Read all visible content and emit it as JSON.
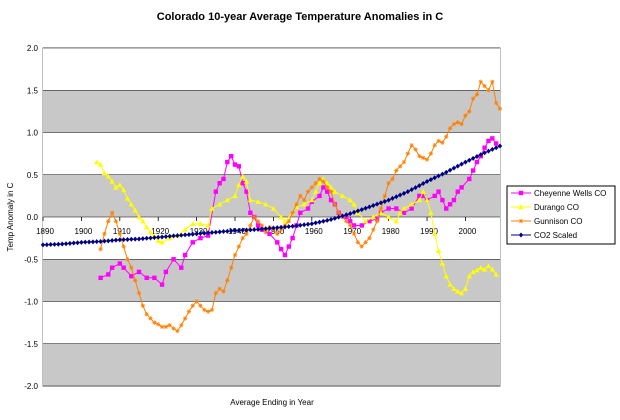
{
  "chart_data": {
    "type": "line",
    "title": "Colorado 10-year Average Temperature Anomalies in C",
    "xlabel": "Average Ending in Year",
    "ylabel": "Temp Anomaly in C",
    "xlim": [
      1890,
      2009
    ],
    "ylim": [
      -2.0,
      2.0
    ],
    "y_ticks": [
      "2.0",
      "1.5",
      "1.0",
      "0.5",
      "0.0",
      "-0.5",
      "-1.0",
      "-1.5",
      "-2.0"
    ],
    "x_ticks": [
      "1890",
      "1900",
      "1910",
      "1920",
      "1930",
      "1940",
      "1950",
      "1960",
      "1970",
      "1980",
      "1990",
      "2000"
    ],
    "grid": true,
    "legend_position": "right",
    "series": [
      {
        "name": "Cheyenne Wells CO",
        "color": "#ff00ff",
        "marker": "square",
        "points": [
          [
            1905,
            -0.72
          ],
          [
            1907,
            -0.68
          ],
          [
            1908,
            -0.6
          ],
          [
            1910,
            -0.55
          ],
          [
            1911,
            -0.6
          ],
          [
            1913,
            -0.7
          ],
          [
            1915,
            -0.65
          ],
          [
            1917,
            -0.72
          ],
          [
            1919,
            -0.72
          ],
          [
            1921,
            -0.8
          ],
          [
            1922,
            -0.65
          ],
          [
            1924,
            -0.5
          ],
          [
            1926,
            -0.6
          ],
          [
            1927,
            -0.45
          ],
          [
            1929,
            -0.3
          ],
          [
            1931,
            -0.25
          ],
          [
            1933,
            -0.22
          ],
          [
            1935,
            0.3
          ],
          [
            1936,
            0.4
          ],
          [
            1937,
            0.45
          ],
          [
            1938,
            0.65
          ],
          [
            1939,
            0.72
          ],
          [
            1940,
            0.62
          ],
          [
            1941,
            0.6
          ],
          [
            1942,
            0.4
          ],
          [
            1943,
            0.3
          ],
          [
            1944,
            0.05
          ],
          [
            1945,
            0.0
          ],
          [
            1946,
            -0.1
          ],
          [
            1947,
            -0.15
          ],
          [
            1949,
            -0.2
          ],
          [
            1951,
            -0.3
          ],
          [
            1952,
            -0.38
          ],
          [
            1953,
            -0.45
          ],
          [
            1954,
            -0.35
          ],
          [
            1955,
            -0.25
          ],
          [
            1956,
            -0.1
          ],
          [
            1957,
            0.05
          ],
          [
            1959,
            0.1
          ],
          [
            1960,
            0.18
          ],
          [
            1962,
            0.25
          ],
          [
            1963,
            0.35
          ],
          [
            1964,
            0.3
          ],
          [
            1965,
            0.2
          ],
          [
            1966,
            0.15
          ],
          [
            1967,
            0.05
          ],
          [
            1969,
            0.0
          ],
          [
            1970,
            -0.05
          ],
          [
            1971,
            -0.1
          ],
          [
            1973,
            -0.1
          ],
          [
            1975,
            -0.05
          ],
          [
            1977,
            -0.02
          ],
          [
            1978,
            0.05
          ],
          [
            1980,
            0.1
          ],
          [
            1982,
            0.1
          ],
          [
            1984,
            0.05
          ],
          [
            1986,
            0.1
          ],
          [
            1988,
            0.25
          ],
          [
            1989,
            0.25
          ],
          [
            1990,
            0.2
          ],
          [
            1992,
            0.25
          ],
          [
            1993,
            0.3
          ],
          [
            1994,
            0.2
          ],
          [
            1995,
            0.1
          ],
          [
            1996,
            0.15
          ],
          [
            1997,
            0.2
          ],
          [
            1998,
            0.3
          ],
          [
            1999,
            0.35
          ],
          [
            2001,
            0.45
          ],
          [
            2002,
            0.55
          ],
          [
            2003,
            0.65
          ],
          [
            2004,
            0.72
          ],
          [
            2005,
            0.82
          ],
          [
            2006,
            0.9
          ],
          [
            2007,
            0.93
          ],
          [
            2008,
            0.87
          ]
        ]
      },
      {
        "name": "Durango CO",
        "color": "#ffff00",
        "marker": "triangle",
        "points": [
          [
            1904,
            0.65
          ],
          [
            1905,
            0.62
          ],
          [
            1906,
            0.52
          ],
          [
            1907,
            0.48
          ],
          [
            1908,
            0.42
          ],
          [
            1909,
            0.35
          ],
          [
            1910,
            0.38
          ],
          [
            1911,
            0.32
          ],
          [
            1912,
            0.22
          ],
          [
            1913,
            0.15
          ],
          [
            1914,
            0.08
          ],
          [
            1915,
            0.0
          ],
          [
            1916,
            -0.05
          ],
          [
            1917,
            -0.12
          ],
          [
            1918,
            -0.18
          ],
          [
            1919,
            -0.22
          ],
          [
            1920,
            -0.28
          ],
          [
            1921,
            -0.3
          ],
          [
            1923,
            -0.25
          ],
          [
            1925,
            -0.22
          ],
          [
            1927,
            -0.15
          ],
          [
            1929,
            -0.08
          ],
          [
            1931,
            -0.08
          ],
          [
            1933,
            -0.1
          ],
          [
            1934,
            0.1
          ],
          [
            1936,
            0.15
          ],
          [
            1938,
            0.2
          ],
          [
            1940,
            0.25
          ],
          [
            1941,
            0.38
          ],
          [
            1942,
            0.48
          ],
          [
            1943,
            0.42
          ],
          [
            1944,
            0.2
          ],
          [
            1946,
            0.18
          ],
          [
            1948,
            0.15
          ],
          [
            1950,
            0.1
          ],
          [
            1952,
            0.0
          ],
          [
            1953,
            -0.05
          ],
          [
            1955,
            0.05
          ],
          [
            1956,
            0.12
          ],
          [
            1958,
            0.15
          ],
          [
            1960,
            0.2
          ],
          [
            1961,
            0.3
          ],
          [
            1962,
            0.4
          ],
          [
            1963,
            0.45
          ],
          [
            1964,
            0.4
          ],
          [
            1965,
            0.35
          ],
          [
            1966,
            0.3
          ],
          [
            1968,
            0.25
          ],
          [
            1970,
            0.2
          ],
          [
            1971,
            0.15
          ],
          [
            1972,
            0.05
          ],
          [
            1974,
            -0.05
          ],
          [
            1976,
            0.0
          ],
          [
            1978,
            0.05
          ],
          [
            1980,
            0.0
          ],
          [
            1982,
            -0.05
          ],
          [
            1983,
            0.05
          ],
          [
            1984,
            0.1
          ],
          [
            1986,
            0.15
          ],
          [
            1988,
            0.2
          ],
          [
            1989,
            0.3
          ],
          [
            1990,
            0.2
          ],
          [
            1991,
            0.05
          ],
          [
            1992,
            -0.2
          ],
          [
            1993,
            -0.4
          ],
          [
            1994,
            -0.55
          ],
          [
            1995,
            -0.7
          ],
          [
            1996,
            -0.8
          ],
          [
            1997,
            -0.85
          ],
          [
            1998,
            -0.88
          ],
          [
            1999,
            -0.9
          ],
          [
            2000,
            -0.85
          ],
          [
            2001,
            -0.7
          ],
          [
            2002,
            -0.65
          ],
          [
            2003,
            -0.63
          ],
          [
            2004,
            -0.6
          ],
          [
            2005,
            -0.62
          ],
          [
            2006,
            -0.58
          ],
          [
            2007,
            -0.62
          ],
          [
            2008,
            -0.68
          ]
        ]
      },
      {
        "name": "Gunnison CO",
        "color": "#ff8000",
        "marker": "star",
        "points": [
          [
            1905,
            -0.38
          ],
          [
            1906,
            -0.2
          ],
          [
            1907,
            -0.05
          ],
          [
            1908,
            0.05
          ],
          [
            1909,
            -0.05
          ],
          [
            1910,
            -0.2
          ],
          [
            1911,
            -0.35
          ],
          [
            1912,
            -0.5
          ],
          [
            1913,
            -0.6
          ],
          [
            1914,
            -0.75
          ],
          [
            1915,
            -0.9
          ],
          [
            1916,
            -1.05
          ],
          [
            1917,
            -1.15
          ],
          [
            1918,
            -1.2
          ],
          [
            1919,
            -1.25
          ],
          [
            1920,
            -1.27
          ],
          [
            1921,
            -1.3
          ],
          [
            1922,
            -1.3
          ],
          [
            1923,
            -1.28
          ],
          [
            1924,
            -1.32
          ],
          [
            1925,
            -1.35
          ],
          [
            1926,
            -1.28
          ],
          [
            1927,
            -1.2
          ],
          [
            1928,
            -1.12
          ],
          [
            1929,
            -1.05
          ],
          [
            1930,
            -1.0
          ],
          [
            1931,
            -1.05
          ],
          [
            1932,
            -1.1
          ],
          [
            1933,
            -1.12
          ],
          [
            1934,
            -1.1
          ],
          [
            1935,
            -0.9
          ],
          [
            1936,
            -0.85
          ],
          [
            1937,
            -0.88
          ],
          [
            1938,
            -0.75
          ],
          [
            1939,
            -0.6
          ],
          [
            1940,
            -0.45
          ],
          [
            1941,
            -0.35
          ],
          [
            1942,
            -0.25
          ],
          [
            1943,
            -0.2
          ],
          [
            1944,
            -0.1
          ],
          [
            1945,
            0.0
          ],
          [
            1946,
            -0.05
          ],
          [
            1947,
            -0.1
          ],
          [
            1948,
            -0.18
          ],
          [
            1949,
            -0.12
          ],
          [
            1950,
            -0.15
          ],
          [
            1951,
            -0.2
          ],
          [
            1952,
            -0.15
          ],
          [
            1953,
            -0.1
          ],
          [
            1954,
            -0.05
          ],
          [
            1955,
            0.05
          ],
          [
            1956,
            0.15
          ],
          [
            1957,
            0.25
          ],
          [
            1958,
            0.2
          ],
          [
            1959,
            0.3
          ],
          [
            1960,
            0.35
          ],
          [
            1961,
            0.4
          ],
          [
            1962,
            0.45
          ],
          [
            1963,
            0.42
          ],
          [
            1964,
            0.35
          ],
          [
            1965,
            0.3
          ],
          [
            1966,
            0.15
          ],
          [
            1967,
            0.05
          ],
          [
            1968,
            0.0
          ],
          [
            1969,
            -0.05
          ],
          [
            1970,
            -0.1
          ],
          [
            1971,
            -0.2
          ],
          [
            1972,
            -0.3
          ],
          [
            1973,
            -0.35
          ],
          [
            1974,
            -0.3
          ],
          [
            1975,
            -0.25
          ],
          [
            1976,
            -0.15
          ],
          [
            1977,
            -0.05
          ],
          [
            1978,
            0.1
          ],
          [
            1979,
            0.25
          ],
          [
            1980,
            0.4
          ],
          [
            1981,
            0.45
          ],
          [
            1982,
            0.55
          ],
          [
            1983,
            0.6
          ],
          [
            1984,
            0.65
          ],
          [
            1985,
            0.75
          ],
          [
            1986,
            0.85
          ],
          [
            1987,
            0.8
          ],
          [
            1988,
            0.72
          ],
          [
            1989,
            0.7
          ],
          [
            1990,
            0.68
          ],
          [
            1991,
            0.75
          ],
          [
            1992,
            0.85
          ],
          [
            1993,
            0.9
          ],
          [
            1994,
            0.88
          ],
          [
            1995,
            0.95
          ],
          [
            1996,
            1.05
          ],
          [
            1997,
            1.1
          ],
          [
            1998,
            1.12
          ],
          [
            1999,
            1.1
          ],
          [
            2000,
            1.2
          ],
          [
            2001,
            1.25
          ],
          [
            2002,
            1.4
          ],
          [
            2003,
            1.45
          ],
          [
            2004,
            1.6
          ],
          [
            2005,
            1.55
          ],
          [
            2006,
            1.5
          ],
          [
            2007,
            1.6
          ],
          [
            2008,
            1.35
          ],
          [
            2009,
            1.28
          ]
        ]
      },
      {
        "name": "CO2 Scaled",
        "color": "#000080",
        "marker": "diamond",
        "points": [
          [
            1890,
            -0.33
          ],
          [
            1895,
            -0.32
          ],
          [
            1900,
            -0.3
          ],
          [
            1905,
            -0.29
          ],
          [
            1910,
            -0.27
          ],
          [
            1915,
            -0.26
          ],
          [
            1920,
            -0.24
          ],
          [
            1925,
            -0.22
          ],
          [
            1930,
            -0.2
          ],
          [
            1935,
            -0.18
          ],
          [
            1940,
            -0.16
          ],
          [
            1945,
            -0.15
          ],
          [
            1950,
            -0.13
          ],
          [
            1955,
            -0.11
          ],
          [
            1960,
            -0.08
          ],
          [
            1965,
            -0.03
          ],
          [
            1970,
            0.04
          ],
          [
            1975,
            0.12
          ],
          [
            1980,
            0.2
          ],
          [
            1985,
            0.3
          ],
          [
            1990,
            0.42
          ],
          [
            1995,
            0.53
          ],
          [
            2000,
            0.65
          ],
          [
            2005,
            0.76
          ],
          [
            2009,
            0.84
          ]
        ]
      }
    ]
  }
}
